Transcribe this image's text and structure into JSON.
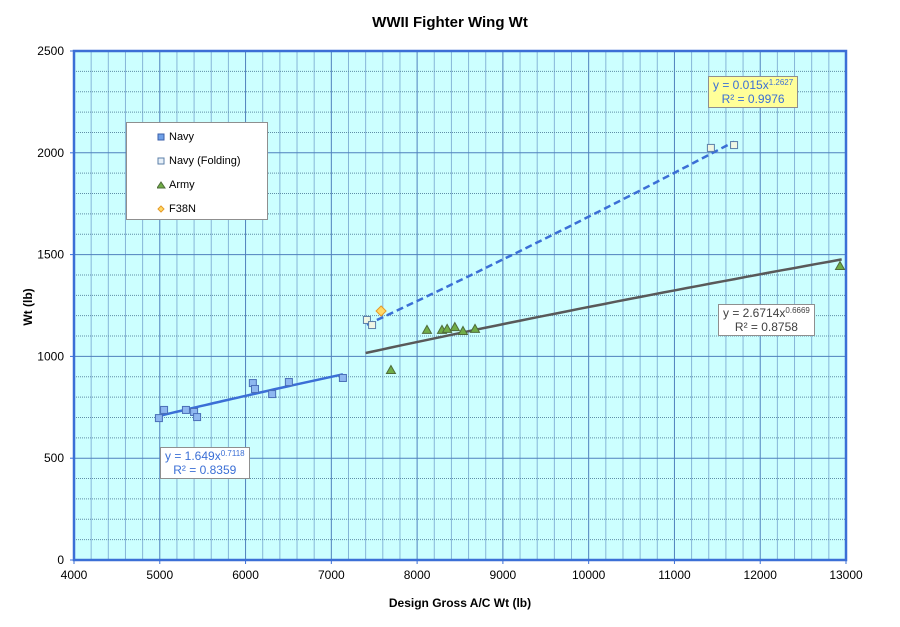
{
  "chart_data": {
    "type": "scatter",
    "title": "WWII Fighter Wing Wt",
    "xlabel": "Design Gross A/C Wt (lb)",
    "ylabel": "Wt (lb)",
    "xlim": [
      4000,
      13000
    ],
    "ylim": [
      0,
      2500
    ],
    "x_ticks": [
      4000,
      5000,
      6000,
      7000,
      8000,
      9000,
      10000,
      11000,
      12000,
      13000
    ],
    "y_ticks": [
      0,
      500,
      1000,
      1500,
      2000,
      2500
    ],
    "x_minor_step": 200,
    "y_minor_step": 100,
    "grid": true,
    "legend_position": "upper-left inside",
    "series": [
      {
        "name": "Navy",
        "marker": "square-filled",
        "color": "#6fa0e8",
        "points": [
          [
            4990,
            697
          ],
          [
            5050,
            737
          ],
          [
            5305,
            737
          ],
          [
            5400,
            727
          ],
          [
            5435,
            702
          ],
          [
            6085,
            869
          ],
          [
            6110,
            840
          ],
          [
            6310,
            815
          ],
          [
            6505,
            874
          ],
          [
            7135,
            894
          ]
        ]
      },
      {
        "name": "Navy (Folding)",
        "marker": "square-open",
        "color": "#e0eec8",
        "points": [
          [
            7415,
            1179
          ],
          [
            7475,
            1154
          ],
          [
            11425,
            2024
          ],
          [
            11695,
            2038
          ]
        ]
      },
      {
        "name": "Army",
        "marker": "triangle",
        "color": "#70ad47",
        "points": [
          [
            7695,
            933
          ],
          [
            8115,
            1130
          ],
          [
            8290,
            1130
          ],
          [
            8350,
            1135
          ],
          [
            8440,
            1144
          ],
          [
            8535,
            1125
          ],
          [
            8675,
            1135
          ],
          [
            12930,
            1444
          ]
        ]
      },
      {
        "name": "F38N",
        "marker": "diamond",
        "color": "#ffd966",
        "points": [
          [
            7580,
            1223
          ]
        ]
      }
    ],
    "trendlines": [
      {
        "series": "Navy",
        "type": "power",
        "a": 1.649,
        "b": 0.7118,
        "x_range": [
          4990,
          7135
        ],
        "color": "#3b6fd6",
        "style": "solid",
        "equation": "y = 1.649x",
        "exponent": "0.7118",
        "r2": "R² = 0.8359"
      },
      {
        "series": "Navy (Folding)",
        "type": "power",
        "a": 0.015,
        "b": 1.2627,
        "x_range": [
          7415,
          11695
        ],
        "color": "#3b6fd6",
        "style": "dashed",
        "equation": "y = 0.015x",
        "exponent": "1.2627",
        "r2": "R² = 0.9976"
      },
      {
        "series": "Army",
        "type": "power",
        "a": 2.6714,
        "b": 0.6669,
        "x_range": [
          7400,
          12950
        ],
        "color": "#595959",
        "style": "solid",
        "equation": "y = 2.6714x",
        "exponent": "0.6669",
        "r2": "R² = 0.8758"
      }
    ]
  },
  "legend": {
    "items": [
      "Navy",
      "Navy (Folding)",
      "Army",
      "F38N"
    ]
  }
}
